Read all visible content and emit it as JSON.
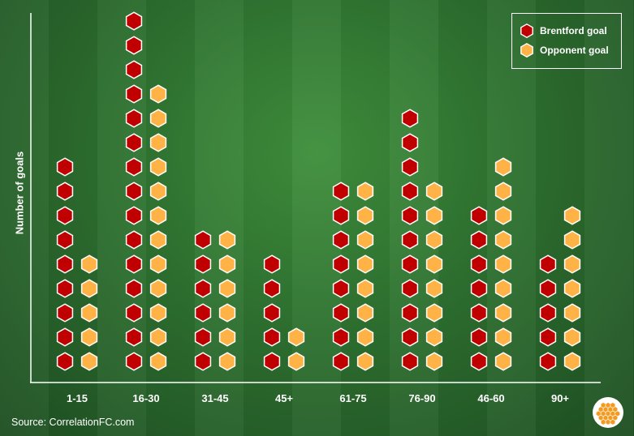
{
  "chart_data": {
    "type": "pictogram-bar",
    "categories": [
      "1-15",
      "16-30",
      "31-45",
      "45+",
      "61-75",
      "76-90",
      "46-60",
      "90+"
    ],
    "series": [
      {
        "name": "Brentford goal",
        "values": [
          9,
          15,
          6,
          5,
          8,
          11,
          7,
          5
        ],
        "color": "#c00000"
      },
      {
        "name": "Opponent goal",
        "values": [
          5,
          12,
          6,
          2,
          8,
          8,
          9,
          7
        ],
        "color": "#ffb347"
      }
    ],
    "xlabel": "",
    "ylabel": "Number of goals",
    "grid": false,
    "legend_placement": "top-right"
  },
  "legend": {
    "brentford": "Brentford goal",
    "opponent": "Opponent goal"
  },
  "source": "Source: CorrelationFC.com",
  "colors": {
    "brentford": "#c00000",
    "opponent": "#ffb347",
    "hex_stroke": "#ffffff",
    "axis": "#ffffff"
  }
}
